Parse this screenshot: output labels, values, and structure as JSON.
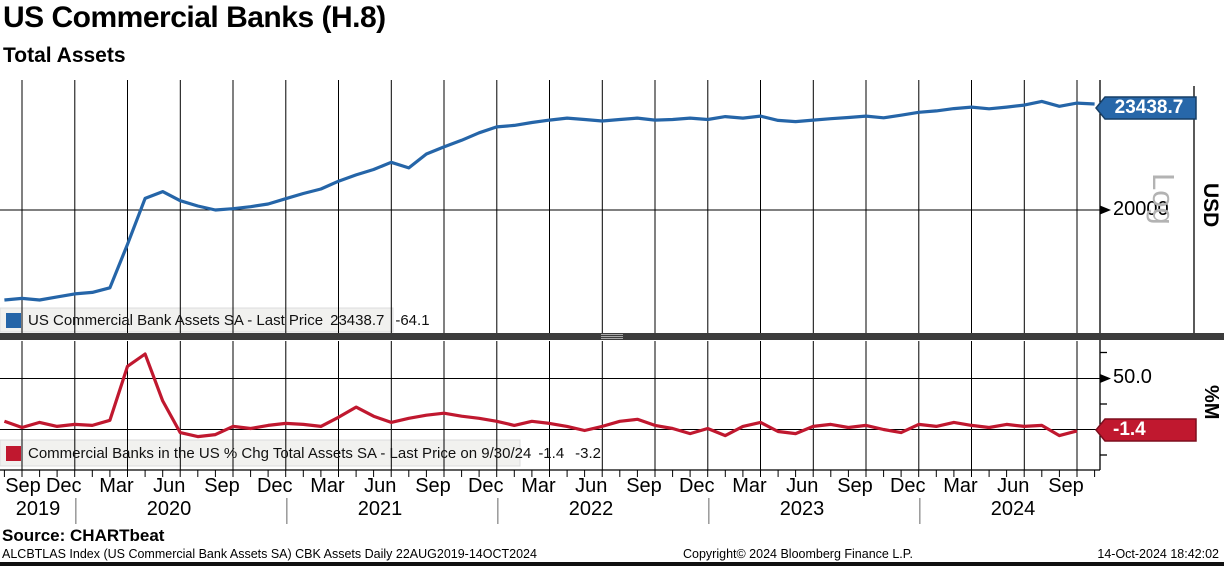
{
  "header": {
    "title": "US Commercial Banks (H.8)",
    "subtitle": "Total Assets"
  },
  "top_panel": {
    "legend": {
      "label": "US Commercial Bank Assets SA - Last Price",
      "last_price": "23438.7",
      "net_change": "-64.1",
      "swatch_color": "#2565a8"
    },
    "axis": {
      "tick_label": "20000",
      "scale_label": "Log",
      "unit_label": "USD",
      "last_price_tag": "23438.7",
      "tag_color": "#2767a9",
      "tag_border": "#173f66"
    },
    "line_color": "#2565a8"
  },
  "bottom_panel": {
    "legend": {
      "label": "Commercial Banks in the US % Chg Total Assets SA - Last Price on 9/30/24",
      "last_price": "-1.4",
      "net_change": "-3.2",
      "swatch_color": "#c0182f"
    },
    "axis": {
      "tick_label": "50.0",
      "unit_label": "%M",
      "last_price_tag": "-1.4",
      "tag_color": "#c0182f",
      "tag_border": "#7d0e1e"
    },
    "line_color": "#c0182f"
  },
  "x_axis": {
    "months": [
      "Sep",
      "Dec",
      "Mar",
      "Jun",
      "Sep",
      "Dec",
      "Mar",
      "Jun",
      "Sep",
      "Dec",
      "Mar",
      "Jun",
      "Sep",
      "Dec",
      "Mar",
      "Jun",
      "Sep",
      "Dec",
      "Mar",
      "Jun",
      "Sep"
    ],
    "years": [
      "2019",
      "2020",
      "2021",
      "2022",
      "2023",
      "2024"
    ]
  },
  "footer": {
    "source": "Source: CHARTbeat",
    "ticker_line": "ALCBTLAS Index (US Commercial Bank Assets SA) CBK Assets  Daily 22AUG2019-14OCT2024",
    "copyright": "Copyright© 2024 Bloomberg Finance L.P.",
    "timestamp": "14-Oct-2024 18:42:02"
  },
  "chart_data": [
    {
      "type": "line",
      "title": "US Commercial Bank Assets SA",
      "unit": "USD",
      "scale": "log",
      "x_start": "2019-08",
      "x_end": "2024-10",
      "frequency": "monthly",
      "gridline_value": 20000,
      "ylim_approx": [
        17300,
        23900
      ],
      "last_price": 23438.7,
      "net_change": -64.1,
      "values": [
        17480,
        17520,
        17480,
        17560,
        17640,
        17680,
        17800,
        19000,
        20350,
        20560,
        20280,
        20120,
        20000,
        20040,
        20100,
        20180,
        20340,
        20500,
        20640,
        20880,
        21080,
        21250,
        21480,
        21300,
        21750,
        21980,
        22200,
        22450,
        22650,
        22700,
        22800,
        22880,
        22950,
        22900,
        22850,
        22900,
        22950,
        22880,
        22900,
        22950,
        22900,
        23000,
        22950,
        23020,
        22870,
        22830,
        22880,
        22930,
        22970,
        23020,
        22960,
        23050,
        23150,
        23200,
        23280,
        23330,
        23270,
        23330,
        23400,
        23530,
        23360,
        23470,
        23438.7
      ]
    },
    {
      "type": "line",
      "title": "Commercial Banks in the US % Chg Total Assets SA",
      "unit": "%M",
      "scale": "linear",
      "x_start": "2019-08",
      "x_end": "2024-09",
      "frequency": "monthly",
      "gridline_values": [
        50,
        0
      ],
      "right_axis_ticks": [
        75,
        50,
        25,
        0,
        -25
      ],
      "ylim_approx": [
        -30,
        85
      ],
      "last_price": -1.4,
      "net_change": -3.2,
      "last_price_date": "9/30/24",
      "values": [
        8,
        2,
        7,
        3,
        5,
        4,
        9,
        62,
        74,
        28,
        -3,
        -7,
        -5,
        3,
        1,
        4,
        6,
        5,
        3,
        12,
        22,
        13,
        7,
        11,
        14,
        16,
        13,
        11,
        8,
        4,
        8,
        6,
        3,
        -1,
        3,
        8,
        10,
        4,
        1,
        -4,
        1,
        -6,
        3,
        7,
        -2,
        -4,
        3,
        5,
        2,
        4,
        0,
        -3,
        5,
        3,
        7,
        4,
        2,
        5,
        3,
        4,
        -6,
        -1.4
      ]
    }
  ]
}
